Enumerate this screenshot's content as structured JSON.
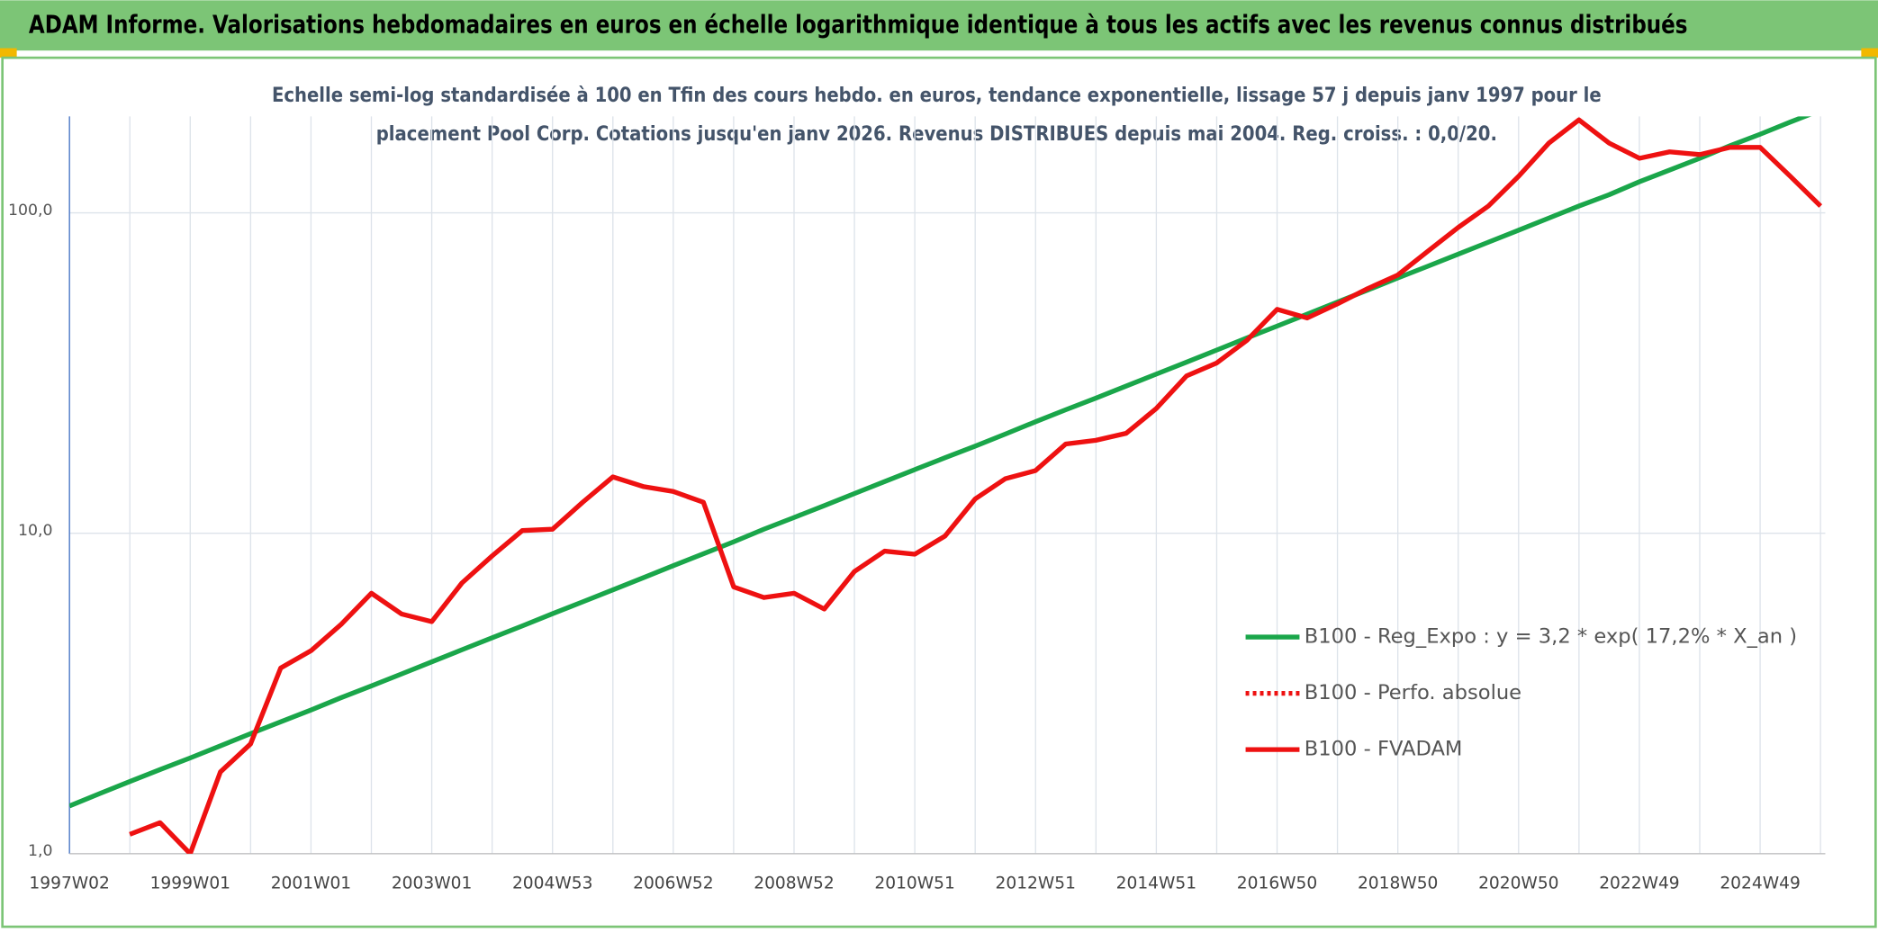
{
  "header": {
    "title": "ADAM Informe. Valorisations hebdomadaires en euros en échelle logarithmique identique à tous les actifs avec les revenus connus distribués"
  },
  "chart_data": {
    "type": "line",
    "title": [
      "Echelle semi-log standardisée à 100 en Tfin des cours hebdo. en euros, tendance exponentielle, lissage 57 j depuis janv 1997 pour le",
      "placement Pool Corp. Cotations jusqu'en janv 2026. Revenus DISTRIBUES depuis mai 2004. Reg. croiss. : 0,0/20."
    ],
    "categories": [
      "1997W02",
      null,
      null,
      null,
      "1999W01",
      null,
      null,
      null,
      "2001W01",
      null,
      null,
      null,
      "2003W01",
      null,
      null,
      null,
      "2004W53",
      null,
      null,
      null,
      "2006W52",
      null,
      null,
      null,
      "2008W52",
      null,
      null,
      null,
      "2010W51",
      null,
      null,
      null,
      "2012W51",
      null,
      null,
      null,
      "2014W51",
      null,
      null,
      null,
      "2016W50",
      null,
      null,
      null,
      "2018W50",
      null,
      null,
      null,
      "2020W50",
      null,
      null,
      null,
      "2022W49",
      null,
      null,
      null,
      "2024W49",
      null,
      null
    ],
    "log_scale": true,
    "ylim": [
      1,
      200
    ],
    "yticks": [
      {
        "value": 1,
        "label": "1,0"
      },
      {
        "value": 10,
        "label": "10,0"
      },
      {
        "value": 100,
        "label": "100,0"
      }
    ],
    "grid": true,
    "legend": "right",
    "series": [
      {
        "name": "B100 - Reg_Expo : y = 3,2 * exp( 17,2% *  X_an )",
        "color": "#1aa64a",
        "line_style": "solid",
        "values": [
          1.41,
          1.54,
          1.68,
          1.83,
          1.99,
          2.17,
          2.37,
          2.58,
          2.81,
          3.07,
          3.34,
          3.64,
          3.97,
          4.33,
          4.72,
          5.14,
          5.61,
          6.11,
          6.66,
          7.26,
          7.92,
          8.63,
          9.41,
          10.3,
          11.2,
          12.2,
          13.3,
          14.5,
          15.8,
          17.2,
          18.7,
          20.4,
          22.3,
          24.3,
          26.4,
          28.8,
          31.4,
          34.2,
          37.3,
          40.7,
          44.3,
          48.3,
          52.7,
          57.4,
          62.6,
          68.2,
          74.3,
          81.0,
          88.3,
          96.3,
          105,
          114,
          125,
          136,
          148,
          162,
          176,
          192,
          209
        ]
      },
      {
        "name": "B100 - Perfo. absolue",
        "color": "#ee1111",
        "line_style": "dotted",
        "values": [
          null,
          null,
          1.15,
          1.25,
          1.0,
          1.8,
          2.2,
          3.8,
          4.3,
          5.2,
          6.5,
          5.6,
          5.3,
          7.0,
          8.5,
          10.2,
          10.3,
          12.5,
          15,
          14,
          13.5,
          12.5,
          6.8,
          6.3,
          6.5,
          5.8,
          7.6,
          8.8,
          8.6,
          9.8,
          12.8,
          14.8,
          15.7,
          19,
          19.5,
          20.5,
          24.5,
          31,
          34,
          40,
          50,
          47,
          52,
          58,
          64,
          76,
          90,
          105,
          130,
          165,
          195,
          165,
          148,
          155,
          152,
          160,
          160,
          130,
          105
        ]
      },
      {
        "name": "B100 - FVADAM",
        "color": "#ee1111",
        "line_style": "solid",
        "values": [
          null,
          null,
          1.15,
          1.25,
          1.0,
          1.8,
          2.2,
          3.8,
          4.3,
          5.2,
          6.5,
          5.6,
          5.3,
          7.0,
          8.5,
          10.2,
          10.3,
          12.5,
          15,
          14,
          13.5,
          12.5,
          6.8,
          6.3,
          6.5,
          5.8,
          7.6,
          8.8,
          8.6,
          9.8,
          12.8,
          14.8,
          15.7,
          19,
          19.5,
          20.5,
          24.5,
          31,
          34,
          40,
          50,
          47,
          52,
          58,
          64,
          76,
          90,
          105,
          130,
          165,
          195,
          165,
          148,
          155,
          152,
          160,
          160,
          130,
          105
        ]
      }
    ]
  }
}
